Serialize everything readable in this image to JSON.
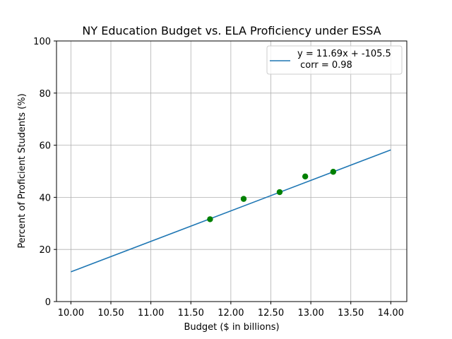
{
  "chart_data": {
    "type": "scatter",
    "title": "NY Education Budget vs. ELA Proficiency under ESSA",
    "xlabel": "Budget ($ in billions)",
    "ylabel": "Percent of Proficient Students (%)",
    "xlim": [
      9.82,
      14.2
    ],
    "ylim": [
      0,
      100
    ],
    "xticks": [
      "10.00",
      "10.50",
      "11.00",
      "11.50",
      "12.00",
      "12.50",
      "13.00",
      "13.50",
      "14.00"
    ],
    "yticks": [
      "0",
      "20",
      "40",
      "60",
      "80",
      "100"
    ],
    "grid": true,
    "legend_position": "top-right",
    "series": [
      {
        "kind": "points",
        "color": "#008000",
        "x": [
          11.74,
          12.16,
          12.61,
          12.93,
          13.28
        ],
        "y": [
          31.6,
          39.4,
          42.0,
          48.0,
          49.8
        ]
      },
      {
        "kind": "line",
        "name": "y = 11.69x + -105.5\n corr = 0.98",
        "color": "#1f77b4",
        "x": [
          10.0,
          14.0
        ],
        "y": [
          11.4,
          58.2
        ]
      }
    ]
  }
}
